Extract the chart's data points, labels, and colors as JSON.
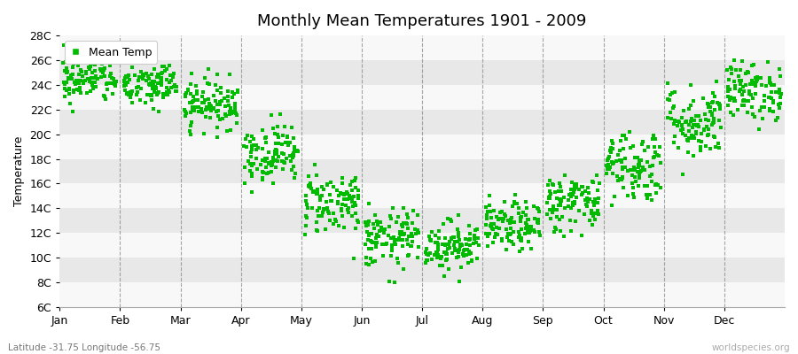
{
  "title": "Monthly Mean Temperatures 1901 - 2009",
  "ylabel": "Temperature",
  "xlabel_labels": [
    "Jan",
    "Feb",
    "Mar",
    "Apr",
    "May",
    "Jun",
    "Jul",
    "Aug",
    "Sep",
    "Oct",
    "Nov",
    "Dec"
  ],
  "ytick_labels": [
    "6C",
    "8C",
    "10C",
    "12C",
    "14C",
    "16C",
    "18C",
    "20C",
    "22C",
    "24C",
    "26C",
    "28C"
  ],
  "ytick_values": [
    6,
    8,
    10,
    12,
    14,
    16,
    18,
    20,
    22,
    24,
    26,
    28
  ],
  "ymin": 6,
  "ymax": 28,
  "dot_color": "#00BB00",
  "dot_size": 6,
  "legend_label": "Mean Temp",
  "subtitle": "Latitude -31.75 Longitude -56.75",
  "watermark": "worldspecies.org",
  "monthly_means": [
    24.5,
    24.0,
    22.5,
    18.5,
    14.5,
    11.5,
    11.0,
    12.5,
    14.5,
    17.5,
    21.0,
    23.5
  ],
  "monthly_stds": [
    1.0,
    1.0,
    1.0,
    1.2,
    1.3,
    1.2,
    1.0,
    1.0,
    1.2,
    1.5,
    1.5,
    1.2
  ],
  "n_years": 109,
  "stripe_color_light": "#e8e8e8",
  "stripe_color_white": "#f8f8f8",
  "grid_color": "#808080",
  "background_color": "#ffffff"
}
